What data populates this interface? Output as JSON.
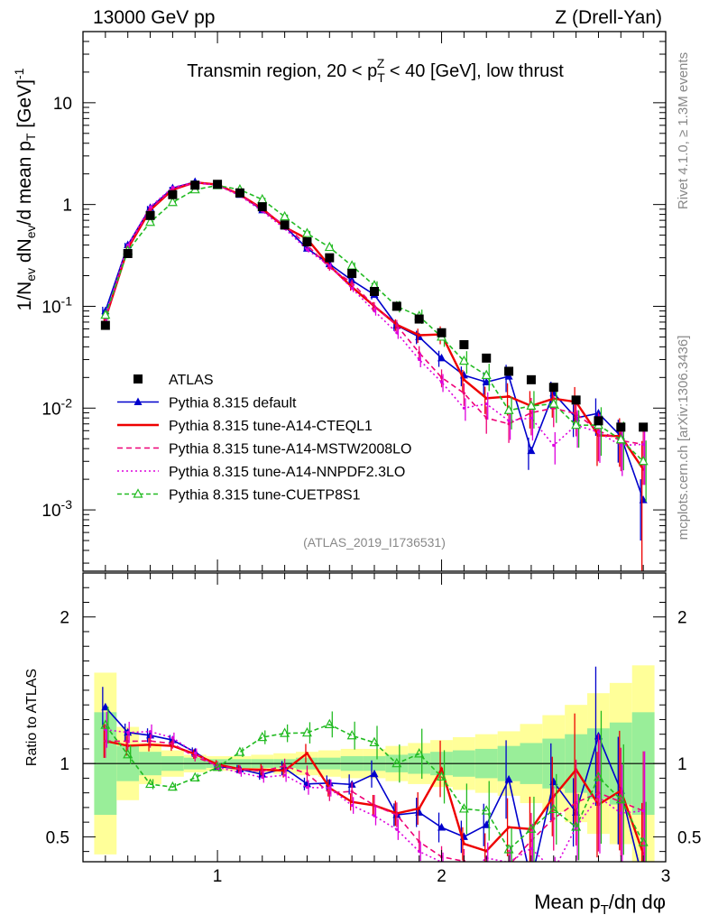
{
  "header": {
    "left": "13000 GeV pp",
    "right": "Z (Drell-Yan)"
  },
  "side": {
    "rivet": "Rivet 4.1.0, ≥ 1.3M events",
    "mcplots": "mcplots.cern.ch [arXiv:1306.3436]"
  },
  "chart_data": {
    "type": "line",
    "title": "Transmin region, 20 < p_T^Z < 40 [GeV], low thrust",
    "analysis_tag": "(ATLAS_2019_I1736531)",
    "xlabel": "Mean p_T/dη dφ",
    "ylabel": "1/N_ev dN_ev/d mean p_T [GeV]^-1",
    "ratio_ylabel": "Ratio to ATLAS",
    "xlim": [
      0.4,
      3.0
    ],
    "ylim": [
      0.00025,
      50
    ],
    "ratio_ylim": [
      0.33,
      2.3
    ],
    "x_ticks": [
      1,
      2,
      3
    ],
    "y_ticks": [
      0.001,
      0.01,
      0.1,
      1,
      10
    ],
    "y_tick_labels": [
      "10^-3",
      "10^-2",
      "10^-1",
      "1",
      "10"
    ],
    "ratio_ticks": [
      0.5,
      1,
      2
    ],
    "ratio_tick_labels": [
      "0.5",
      "1",
      "2"
    ],
    "x": [
      0.5,
      0.6,
      0.7,
      0.8,
      0.9,
      1.0,
      1.1,
      1.2,
      1.3,
      1.4,
      1.5,
      1.6,
      1.7,
      1.8,
      1.9,
      2.0,
      2.1,
      2.2,
      2.3,
      2.4,
      2.5,
      2.6,
      2.7,
      2.8,
      2.9
    ],
    "data": {
      "name": "ATLAS",
      "values": [
        0.065,
        0.33,
        0.78,
        1.25,
        1.55,
        1.58,
        1.3,
        0.95,
        0.63,
        0.43,
        0.3,
        0.21,
        0.14,
        0.1,
        0.075,
        0.055,
        0.042,
        0.031,
        0.023,
        0.019,
        0.016,
        0.012,
        0.0075,
        0.0065,
        0.0065
      ],
      "band_green": [
        0.35,
        0.12,
        0.08,
        0.05,
        0.04,
        0.03,
        0.03,
        0.03,
        0.03,
        0.04,
        0.04,
        0.05,
        0.05,
        0.06,
        0.07,
        0.08,
        0.09,
        0.1,
        0.12,
        0.14,
        0.17,
        0.2,
        0.24,
        0.28,
        0.35
      ],
      "band_yellow": [
        0.62,
        0.25,
        0.14,
        0.09,
        0.06,
        0.05,
        0.05,
        0.06,
        0.07,
        0.08,
        0.09,
        0.1,
        0.1,
        0.12,
        0.14,
        0.16,
        0.18,
        0.2,
        0.22,
        0.27,
        0.33,
        0.4,
        0.48,
        0.55,
        0.67
      ]
    },
    "series": [
      {
        "name": "Pythia 8.315 default",
        "color": "#0000cc",
        "dash": "solid",
        "marker": "triangle-filled",
        "values": [
          0.09,
          0.4,
          0.93,
          1.45,
          1.67,
          1.55,
          1.25,
          0.88,
          0.61,
          0.37,
          0.26,
          0.18,
          0.13,
          0.065,
          0.05,
          0.031,
          0.021,
          0.018,
          0.0205,
          0.0038,
          0.014,
          0.008,
          0.0089,
          0.0053,
          0.00125
        ],
        "errors": [
          0.1,
          0.05,
          0.04,
          0.03,
          0.03,
          0.03,
          0.03,
          0.04,
          0.05,
          0.05,
          0.06,
          0.08,
          0.1,
          0.12,
          0.15,
          0.18,
          0.22,
          0.25,
          0.3,
          0.35,
          0.3,
          0.35,
          0.4,
          0.45,
          0.6
        ]
      },
      {
        "name": "Pythia 8.315 tune-A14-CTEQL1",
        "color": "#ee0000",
        "dash": "solid",
        "marker": "none",
        "values": [
          0.075,
          0.37,
          0.88,
          1.4,
          1.65,
          1.57,
          1.25,
          0.91,
          0.6,
          0.46,
          0.25,
          0.155,
          0.1,
          0.066,
          0.052,
          0.053,
          0.019,
          0.0125,
          0.013,
          0.0105,
          0.0124,
          0.0115,
          0.0054,
          0.0053,
          0.0025
        ],
        "errors": [
          0.1,
          0.06,
          0.04,
          0.03,
          0.03,
          0.03,
          0.03,
          0.04,
          0.05,
          0.06,
          0.07,
          0.08,
          0.1,
          0.13,
          0.16,
          0.2,
          0.25,
          0.3,
          0.35,
          0.4,
          0.35,
          0.4,
          0.5,
          0.5,
          0.9
        ]
      },
      {
        "name": "Pythia 8.315 tune-A14-MSTW2008LO",
        "color": "#ee0077",
        "dash": "6,4",
        "marker": "none",
        "values": [
          0.075,
          0.38,
          0.9,
          1.42,
          1.62,
          1.56,
          1.25,
          0.9,
          0.62,
          0.4,
          0.24,
          0.17,
          0.1,
          0.065,
          0.035,
          0.02,
          0.014,
          0.008,
          0.007,
          0.009,
          0.01,
          0.0088,
          0.006,
          0.0048,
          0.0044
        ],
        "errors": [
          0.1,
          0.06,
          0.04,
          0.03,
          0.03,
          0.03,
          0.03,
          0.04,
          0.05,
          0.06,
          0.07,
          0.08,
          0.1,
          0.13,
          0.16,
          0.2,
          0.25,
          0.3,
          0.35,
          0.4,
          0.35,
          0.4,
          0.5,
          0.5,
          0.6
        ]
      },
      {
        "name": "Pythia 8.315 tune-A14-NNPDF2.3LO",
        "color": "#dd00dd",
        "dash": "2,3",
        "marker": "none",
        "values": [
          0.08,
          0.4,
          0.95,
          1.47,
          1.66,
          1.54,
          1.22,
          0.86,
          0.58,
          0.36,
          0.25,
          0.15,
          0.09,
          0.055,
          0.03,
          0.018,
          0.01,
          0.011,
          0.0075,
          0.008,
          0.0043,
          0.0068,
          0.0058,
          0.0043,
          0.0044
        ],
        "errors": [
          0.1,
          0.06,
          0.04,
          0.03,
          0.03,
          0.03,
          0.03,
          0.04,
          0.05,
          0.06,
          0.07,
          0.08,
          0.1,
          0.13,
          0.16,
          0.2,
          0.25,
          0.3,
          0.35,
          0.4,
          0.35,
          0.4,
          0.5,
          0.5,
          0.6
        ]
      },
      {
        "name": "Pythia 8.315 tune-CUETP8S1",
        "color": "#22bb22",
        "dash": "5,3",
        "marker": "triangle-open",
        "values": [
          0.082,
          0.35,
          0.67,
          1.05,
          1.4,
          1.54,
          1.4,
          1.12,
          0.76,
          0.52,
          0.38,
          0.25,
          0.16,
          0.1,
          0.08,
          0.05,
          0.029,
          0.021,
          0.0095,
          0.0105,
          0.011,
          0.0068,
          0.0068,
          0.0049,
          0.003
        ],
        "errors": [
          0.1,
          0.06,
          0.04,
          0.03,
          0.03,
          0.03,
          0.03,
          0.04,
          0.05,
          0.06,
          0.07,
          0.08,
          0.1,
          0.13,
          0.16,
          0.2,
          0.25,
          0.3,
          0.35,
          0.4,
          0.35,
          0.4,
          0.5,
          0.5,
          0.6
        ]
      }
    ],
    "legend": [
      "ATLAS",
      "Pythia 8.315 default",
      "Pythia 8.315 tune-A14-CTEQL1",
      "Pythia 8.315 tune-A14-MSTW2008LO",
      "Pythia 8.315 tune-A14-NNPDF2.3LO",
      "Pythia 8.315 tune-CUETP8S1"
    ]
  }
}
